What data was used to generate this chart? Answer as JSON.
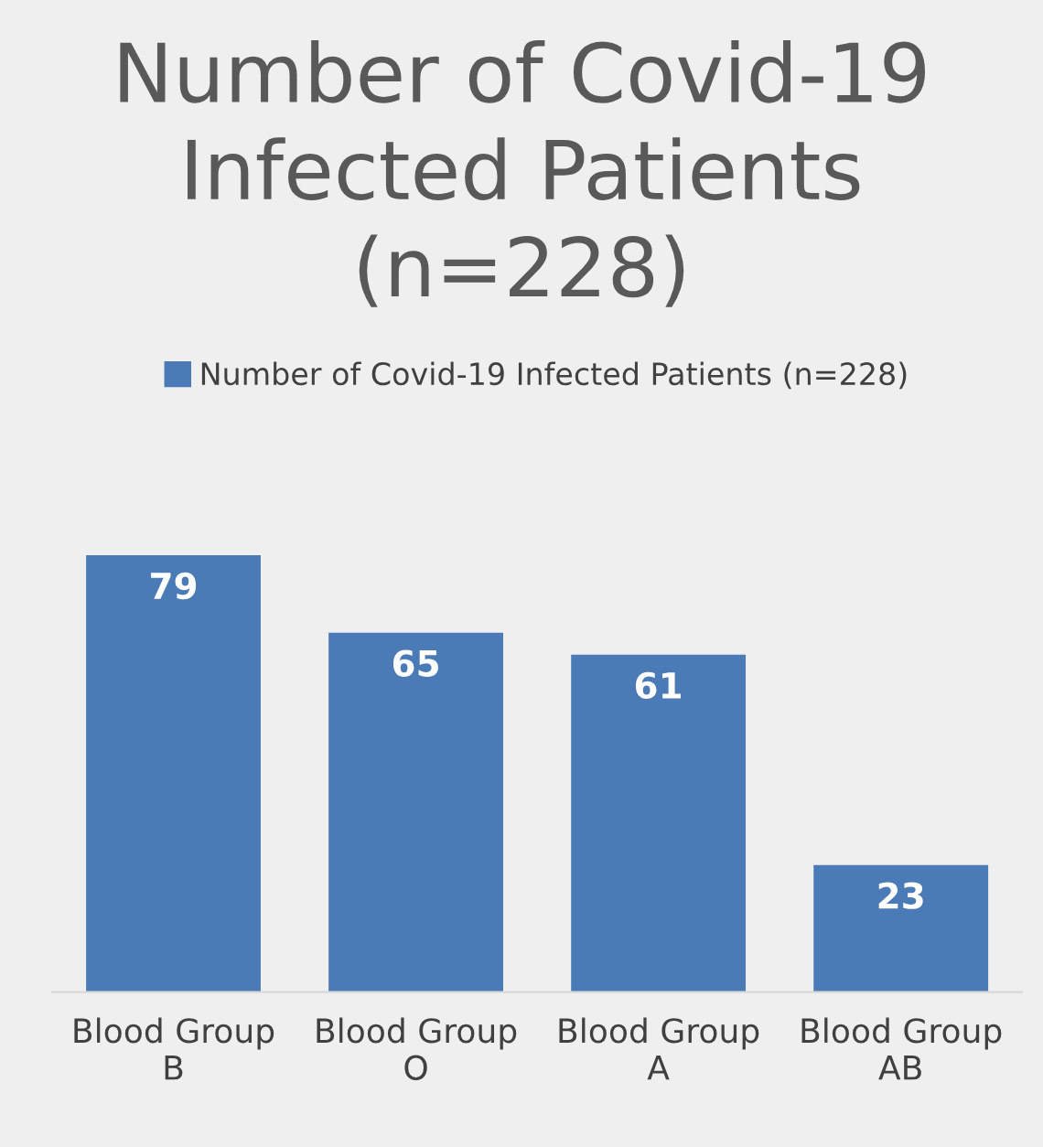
{
  "chart_data": {
    "type": "bar",
    "title": "Number of Covid-19 Infected Patients (n=228)",
    "categories": [
      "Blood Group B",
      "Blood Group O",
      "Blood Group A",
      "Blood Group AB"
    ],
    "series": [
      {
        "name": "Number of Covid-19 Infected Patients (n=228)",
        "color": "#4a7bb7",
        "values": [
          79,
          65,
          61,
          23
        ]
      }
    ],
    "tick_labels": "x",
    "data_labels": true,
    "legend": "top",
    "grid": false
  }
}
